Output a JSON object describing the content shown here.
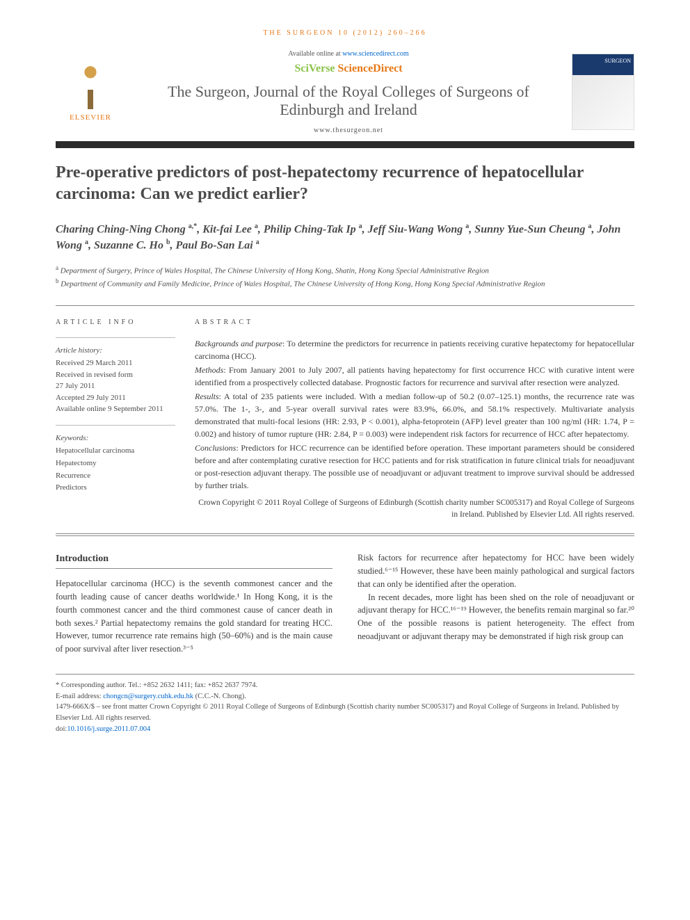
{
  "header": {
    "running_head": "THE SURGEON 10 (2012) 260–266",
    "available_prefix": "Available online at ",
    "available_url": "www.sciencedirect.com",
    "sciverse_sci": "SciVerse ",
    "sciverse_direct": "ScienceDirect",
    "journal_name": "The Surgeon, Journal of the Royal Colleges of Surgeons of Edinburgh and Ireland",
    "journal_url": "www.thesurgeon.net",
    "elsevier_label": "ELSEVIER",
    "cover_label": "SURGEON"
  },
  "title": "Pre-operative predictors of post-hepatectomy recurrence of hepatocellular carcinoma: Can we predict earlier?",
  "authors_html": "Charing Ching-Ning Chong <sup>a,*</sup>, Kit-fai Lee <sup>a</sup>, Philip Ching-Tak Ip <sup>a</sup>, Jeff Siu-Wang Wong <sup>a</sup>, Sunny Yue-Sun Cheung <sup>a</sup>, John Wong <sup>a</sup>, Suzanne C. Ho <sup>b</sup>, Paul Bo-San Lai <sup>a</sup>",
  "affiliations": {
    "a": "Department of Surgery, Prince of Wales Hospital, The Chinese University of Hong Kong, Shatin, Hong Kong Special Administrative Region",
    "b": "Department of Community and Family Medicine, Prince of Wales Hospital, The Chinese University of Hong Kong, Hong Kong Special Administrative Region"
  },
  "article_info": {
    "heading": "ARTICLE INFO",
    "history_label": "Article history:",
    "history": [
      "Received 29 March 2011",
      "Received in revised form",
      "27 July 2011",
      "Accepted 29 July 2011",
      "Available online 9 September 2011"
    ],
    "keywords_label": "Keywords:",
    "keywords": [
      "Hepatocellular carcinoma",
      "Hepatectomy",
      "Recurrence",
      "Predictors"
    ]
  },
  "abstract": {
    "heading": "ABSTRACT",
    "sections": [
      {
        "label": "Backgrounds and purpose",
        "text": ": To determine the predictors for recurrence in patients receiving curative hepatectomy for hepatocellular carcinoma (HCC)."
      },
      {
        "label": "Methods",
        "text": ": From January 2001 to July 2007, all patients having hepatectomy for first occurrence HCC with curative intent were identified from a prospectively collected database. Prognostic factors for recurrence and survival after resection were analyzed."
      },
      {
        "label": "Results",
        "text": ": A total of 235 patients were included. With a median follow-up of 50.2 (0.07–125.1) months, the recurrence rate was 57.0%. The 1-, 3-, and 5-year overall survival rates were 83.9%, 66.0%, and 58.1% respectively. Multivariate analysis demonstrated that multi-focal lesions (HR: 2.93, P < 0.001), alpha-fetoprotein (AFP) level greater than 100 ng/ml (HR: 1.74, P = 0.002) and history of tumor rupture (HR: 2.84, P = 0.003) were independent risk factors for recurrence of HCC after hepatectomy."
      },
      {
        "label": "Conclusions",
        "text": ": Predictors for HCC recurrence can be identified before operation. These important parameters should be considered before and after contemplating curative resection for HCC patients and for risk stratification in future clinical trials for neoadjuvant or post-resection adjuvant therapy. The possible use of neoadjuvant or adjuvant treatment to improve survival should be addressed by further trials."
      }
    ],
    "copyright": "Crown Copyright © 2011 Royal College of Surgeons of Edinburgh (Scottish charity number SC005317) and Royal College of Surgeons in Ireland. Published by Elsevier Ltd. All rights reserved."
  },
  "body": {
    "intro_heading": "Introduction",
    "col1_p1": "Hepatocellular carcinoma (HCC) is the seventh commonest cancer and the fourth leading cause of cancer deaths worldwide.¹ In Hong Kong, it is the fourth commonest cancer and the third commonest cause of cancer death in both sexes.² Partial hepatectomy remains the gold standard for treating HCC. However, tumor recurrence rate remains high (50–60%) and is the main cause of poor survival after liver resection.³⁻⁵",
    "col2_p1": "Risk factors for recurrence after hepatectomy for HCC have been widely studied.⁶⁻¹⁵ However, these have been mainly pathological and surgical factors that can only be identified after the operation.",
    "col2_p2": "In recent decades, more light has been shed on the role of neoadjuvant or adjuvant therapy for HCC.¹⁶⁻¹⁹ However, the benefits remain marginal so far.²⁰ One of the possible reasons is patient heterogeneity. The effect from neoadjuvant or adjuvant therapy may be demonstrated if high risk group can"
  },
  "footer": {
    "corr_label": "* Corresponding author.",
    "corr_contact": " Tel.: +852 2632 1411; fax: +852 2637 7974.",
    "email_label": "E-mail address: ",
    "email": "chongcn@surgery.cuhk.edu.hk",
    "email_suffix": " (C.C.-N. Chong).",
    "front_matter": "1479-666X/$ – see front matter Crown Copyright © 2011 Royal College of Surgeons of Edinburgh (Scottish charity number SC005317) and Royal College of Surgeons in Ireland. Published by Elsevier Ltd. All rights reserved.",
    "doi_label": "doi:",
    "doi": "10.1016/j.surge.2011.07.004"
  },
  "colors": {
    "accent_orange": "#e67817",
    "link_blue": "#0066cc",
    "text_gray": "#4a4a4a",
    "sep_dark": "#2a2a2a"
  }
}
